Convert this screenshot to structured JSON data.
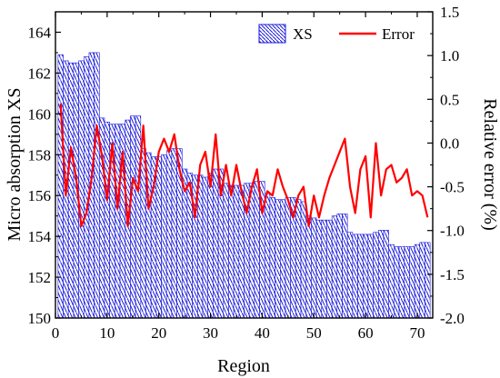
{
  "chart_data": {
    "type": "bar",
    "xlabel": "Region",
    "ylabel": "Micro absorption XS",
    "y2label": "Relative error (%)",
    "xlim": [
      0,
      73
    ],
    "ylim": [
      150,
      165
    ],
    "y2lim": [
      -2.0,
      1.5
    ],
    "x_ticks": [
      0,
      10,
      20,
      30,
      40,
      50,
      60,
      70
    ],
    "y_ticks": [
      150,
      152,
      154,
      156,
      158,
      160,
      162,
      164
    ],
    "y2_ticks": [
      -2.0,
      -1.5,
      -1.0,
      -0.5,
      0.0,
      0.5,
      1.0,
      1.5
    ],
    "legend_position": "top-right",
    "colors": {
      "bar": "#1a1adb",
      "error": "#ff0000"
    },
    "series": [
      {
        "name": "XS",
        "axis": "left",
        "x": [
          1,
          2,
          3,
          4,
          5,
          6,
          7,
          8,
          9,
          10,
          11,
          12,
          13,
          14,
          15,
          16,
          17,
          18,
          19,
          20,
          21,
          22,
          23,
          24,
          25,
          26,
          27,
          28,
          29,
          30,
          31,
          32,
          33,
          34,
          35,
          36,
          37,
          38,
          39,
          40,
          41,
          42,
          43,
          44,
          45,
          46,
          47,
          48,
          49,
          50,
          51,
          52,
          53,
          54,
          55,
          56,
          57,
          58,
          59,
          60,
          61,
          62,
          63,
          64,
          65,
          66,
          67,
          68,
          69,
          70,
          71,
          72
        ],
        "values": [
          162.9,
          162.6,
          162.5,
          162.5,
          162.6,
          162.8,
          163.0,
          163.0,
          159.8,
          159.6,
          159.5,
          159.5,
          159.5,
          159.7,
          159.9,
          159.9,
          158.3,
          158.1,
          157.9,
          157.9,
          158.0,
          158.2,
          158.3,
          158.3,
          157.3,
          157.1,
          157.0,
          157.0,
          156.9,
          157.1,
          157.3,
          157.3,
          156.6,
          156.5,
          156.5,
          156.5,
          156.6,
          156.6,
          156.7,
          156.7,
          156.1,
          155.9,
          155.8,
          155.8,
          155.9,
          155.9,
          155.8,
          155.7,
          155.0,
          154.9,
          154.8,
          154.8,
          154.8,
          155.0,
          155.1,
          155.1,
          154.2,
          154.1,
          154.1,
          154.1,
          154.1,
          154.2,
          154.3,
          154.3,
          153.6,
          153.5,
          153.5,
          153.5,
          153.5,
          153.6,
          153.7,
          153.7
        ]
      },
      {
        "name": "Error",
        "axis": "right",
        "x": [
          1,
          2,
          3,
          4,
          5,
          6,
          7,
          8,
          9,
          10,
          11,
          12,
          13,
          14,
          15,
          16,
          17,
          18,
          19,
          20,
          21,
          22,
          23,
          24,
          25,
          26,
          27,
          28,
          29,
          30,
          31,
          32,
          33,
          34,
          35,
          36,
          37,
          38,
          39,
          40,
          41,
          42,
          43,
          44,
          45,
          46,
          47,
          48,
          49,
          50,
          51,
          52,
          53,
          54,
          55,
          56,
          57,
          58,
          59,
          60,
          61,
          62,
          63,
          64,
          65,
          66,
          67,
          68,
          69,
          70,
          71,
          72
        ],
        "values": [
          0.45,
          -0.6,
          -0.05,
          -0.4,
          -0.95,
          -0.8,
          -0.4,
          0.2,
          -0.15,
          -0.65,
          0.0,
          -0.75,
          -0.1,
          -0.95,
          -0.4,
          -0.55,
          0.2,
          -0.75,
          -0.5,
          -0.1,
          0.05,
          -0.1,
          0.1,
          -0.3,
          -0.55,
          -0.45,
          -0.85,
          -0.25,
          -0.1,
          -0.5,
          0.1,
          -0.6,
          -0.25,
          -0.6,
          -0.25,
          -0.55,
          -0.8,
          -0.5,
          -0.3,
          -0.8,
          -0.55,
          -0.6,
          -0.3,
          -0.5,
          -0.65,
          -0.85,
          -0.6,
          -0.5,
          -0.95,
          -0.6,
          -0.85,
          -0.6,
          -0.4,
          -0.25,
          -0.1,
          0.05,
          -0.5,
          -0.8,
          -0.3,
          -0.15,
          -0.85,
          0.0,
          -0.6,
          -0.3,
          -0.25,
          -0.45,
          -0.4,
          -0.3,
          -0.6,
          -0.55,
          -0.6,
          -0.85
        ]
      }
    ]
  }
}
